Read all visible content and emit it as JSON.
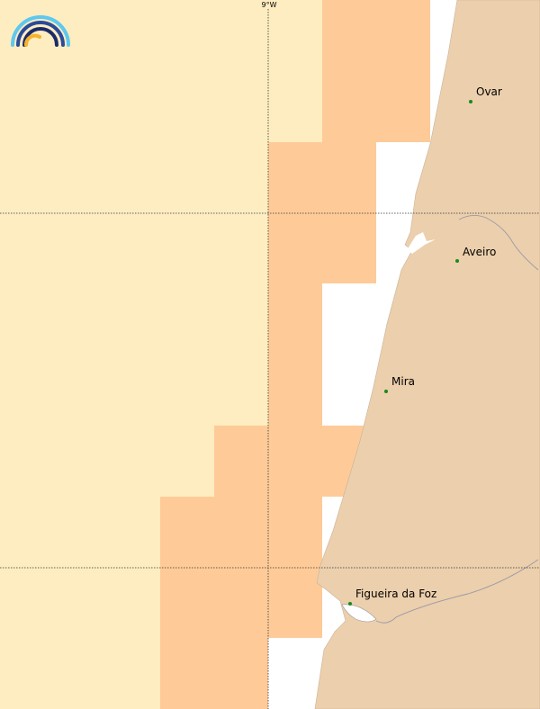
{
  "map": {
    "grid_label": "9°W",
    "places": [
      "Ovar",
      "Aveiro",
      "Mira",
      "Figueira da Foz"
    ]
  }
}
